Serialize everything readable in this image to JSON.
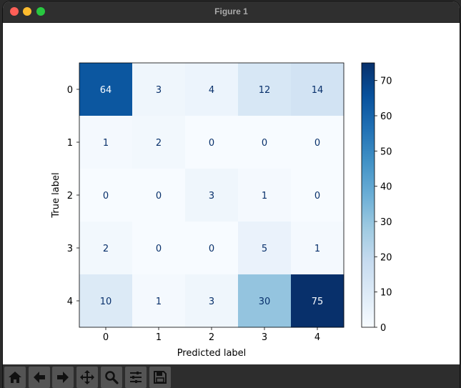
{
  "window": {
    "title": "Figure 1"
  },
  "toolbar": {
    "buttons": [
      {
        "name": "home-icon"
      },
      {
        "name": "back-icon"
      },
      {
        "name": "forward-icon"
      },
      {
        "name": "pan-icon"
      },
      {
        "name": "zoom-icon"
      },
      {
        "name": "configure-subplots-icon"
      },
      {
        "name": "save-icon"
      }
    ]
  },
  "chart_data": {
    "type": "heatmap",
    "title": "",
    "xlabel": "Predicted label",
    "ylabel": "True label",
    "x_categories": [
      "0",
      "1",
      "2",
      "3",
      "4"
    ],
    "y_categories": [
      "0",
      "1",
      "2",
      "3",
      "4"
    ],
    "values": [
      [
        64,
        3,
        4,
        12,
        14
      ],
      [
        1,
        2,
        0,
        0,
        0
      ],
      [
        0,
        0,
        3,
        1,
        0
      ],
      [
        2,
        0,
        0,
        5,
        1
      ],
      [
        10,
        1,
        3,
        30,
        75
      ]
    ],
    "colormap": "Blues",
    "colorbar": {
      "min": 0,
      "max": 75,
      "ticks": [
        0,
        10,
        20,
        30,
        40,
        50,
        60,
        70
      ]
    },
    "colors": {
      "low": "#f7fbff",
      "high": "#08306b",
      "text_dark": "#08306b",
      "text_light": "#f7fbff"
    },
    "grid": false
  }
}
